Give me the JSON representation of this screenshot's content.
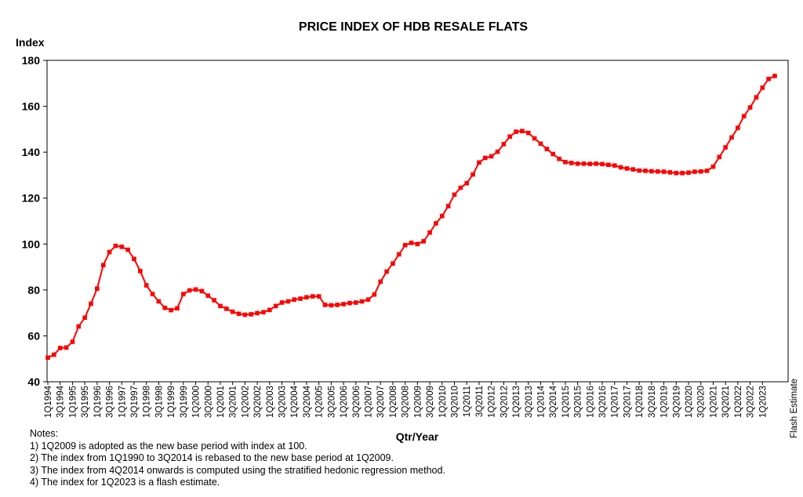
{
  "chart_data": {
    "type": "line",
    "title": "PRICE INDEX OF HDB RESALE FLATS",
    "ylabel": "Index",
    "xlabel": "Qtr/Year",
    "ylim": [
      40,
      180
    ],
    "yticks": [
      40,
      60,
      80,
      100,
      120,
      140,
      160,
      180
    ],
    "grid": false,
    "x_tick_labels": [
      "1Q1994",
      "3Q1994",
      "1Q1995",
      "3Q1995",
      "1Q1996",
      "3Q1996",
      "1Q1997",
      "3Q1997",
      "1Q1998",
      "3Q1998",
      "1Q1999",
      "3Q1999",
      "1Q2000",
      "3Q2000",
      "1Q2001",
      "3Q2001",
      "1Q2002",
      "3Q2002",
      "1Q2003",
      "3Q2003",
      "1Q2004",
      "3Q2004",
      "1Q2005",
      "3Q2005",
      "1Q2006",
      "3Q2006",
      "1Q2007",
      "3Q2007",
      "1Q2008",
      "3Q2008",
      "1Q2009",
      "3Q2009",
      "1Q2010",
      "3Q2010",
      "1Q2011",
      "3Q2011",
      "1Q2012",
      "3Q2012",
      "1Q2013",
      "3Q2013",
      "1Q2014",
      "3Q2014",
      "1Q2015",
      "3Q2015",
      "1Q2016",
      "3Q2016",
      "1Q2017",
      "3Q2017",
      "1Q2018",
      "3Q2018",
      "1Q2019",
      "3Q2019",
      "1Q2020",
      "3Q2020",
      "1Q2021",
      "3Q2021",
      "1Q2022",
      "3Q2022",
      "1Q2023"
    ],
    "last_point_note": "Flash Estimate",
    "series": [
      {
        "name": "",
        "color": "#ff0000",
        "values": [
          50.5,
          51.8,
          54.7,
          54.9,
          57.4,
          64.1,
          67.9,
          74.0,
          80.6,
          90.8,
          96.5,
          99.2,
          98.8,
          97.5,
          93.5,
          88.2,
          82.0,
          78.2,
          75.0,
          72.2,
          71.2,
          72.0,
          78.2,
          79.8,
          80.2,
          79.5,
          77.5,
          75.5,
          73.0,
          71.8,
          70.5,
          69.6,
          69.2,
          69.4,
          69.9,
          70.3,
          71.3,
          73.0,
          74.5,
          75.0,
          75.8,
          76.2,
          76.8,
          77.2,
          77.2,
          73.5,
          73.3,
          73.5,
          73.8,
          74.3,
          74.5,
          75.0,
          75.8,
          78.0,
          83.6,
          88.0,
          91.5,
          95.5,
          99.5,
          100.5,
          100.0,
          101.2,
          105.0,
          109.0,
          112.2,
          116.5,
          121.5,
          124.5,
          126.5,
          130.3,
          135.5,
          137.5,
          138.2,
          140.2,
          143.5,
          146.8,
          148.9,
          149.2,
          148.4,
          146.0,
          143.7,
          141.4,
          139.2,
          137.1,
          135.7,
          135.3,
          135.0,
          135.0,
          134.9,
          135.0,
          134.8,
          134.5,
          134.2,
          133.4,
          132.9,
          132.5,
          132.0,
          131.9,
          131.7,
          131.6,
          131.5,
          131.2,
          130.9,
          130.9,
          131.1,
          131.5,
          131.6,
          131.9,
          133.7,
          137.9,
          142.1,
          146.4,
          150.6,
          155.7,
          159.5,
          163.9,
          168.1,
          171.9,
          173.2
        ]
      }
    ]
  },
  "notes": {
    "heading": "Notes:",
    "lines": [
      "1) 1Q2009 is adopted as the new base period with index at 100.",
      "2) The index from 1Q1990 to 3Q2014 is rebased to the new base period at 1Q2009.",
      "3) The index from 4Q2014 onwards is computed using the stratified hedonic regression method.",
      "4) The index for 1Q2023 is a flash estimate."
    ]
  }
}
